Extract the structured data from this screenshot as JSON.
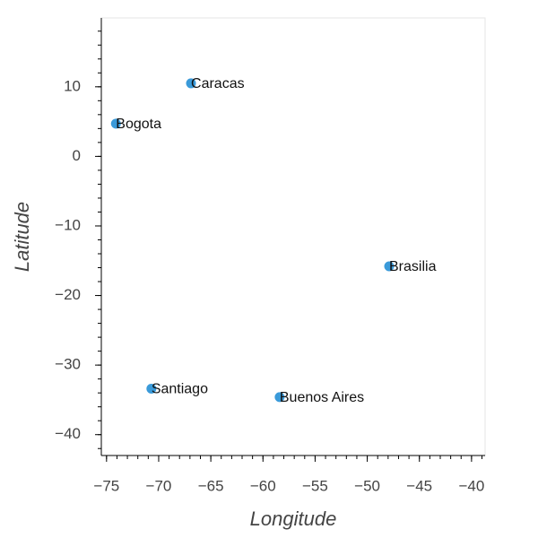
{
  "chart_data": {
    "type": "scatter",
    "x_label": "Longitude",
    "y_label": "Latitude",
    "labels": [
      "Caracas",
      "Bogota",
      "Brasilia",
      "Santiago",
      "Buenos Aires"
    ],
    "x": [
      -66.9,
      -74.1,
      -47.9,
      -70.7,
      -58.4
    ],
    "values": [
      10.5,
      4.7,
      -15.8,
      -33.4,
      -34.6
    ],
    "color": "#3a9ad9",
    "xlim": [
      -75.5,
      -38.7
    ],
    "ylim": [
      -43,
      19.9
    ],
    "xticks": [
      {
        "value": -75,
        "label": "−75"
      },
      {
        "value": -70,
        "label": "−70"
      },
      {
        "value": -65,
        "label": "−65"
      },
      {
        "value": -60,
        "label": "−60"
      },
      {
        "value": -55,
        "label": "−55"
      },
      {
        "value": -50,
        "label": "−50"
      },
      {
        "value": -45,
        "label": "−45"
      },
      {
        "value": -40,
        "label": "−40"
      }
    ],
    "yticks": [
      {
        "value": -40,
        "label": "−40"
      },
      {
        "value": -30,
        "label": "−30"
      },
      {
        "value": -20,
        "label": "−20"
      },
      {
        "value": -10,
        "label": "−10"
      },
      0,
      10
    ]
  }
}
